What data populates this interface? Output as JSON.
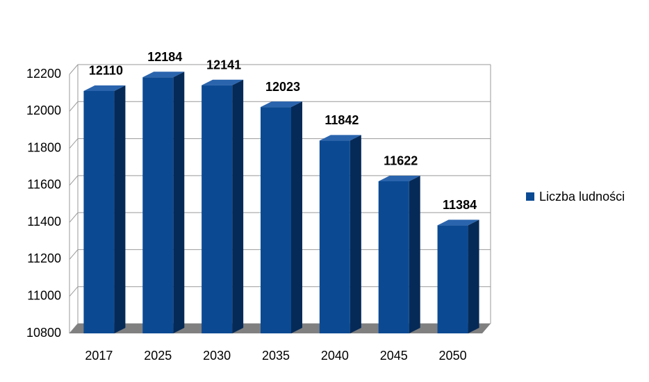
{
  "chart_data": {
    "type": "bar3d",
    "categories": [
      "2017",
      "2025",
      "2030",
      "2035",
      "2040",
      "2045",
      "2050"
    ],
    "series": [
      {
        "name": "Liczba ludności",
        "color": "#0b4a93",
        "values": [
          12110,
          12184,
          12141,
          12023,
          11842,
          11622,
          11384
        ]
      }
    ],
    "ylim": [
      10800,
      12200
    ],
    "yticks": [
      10800,
      11000,
      11200,
      11400,
      11600,
      11800,
      12000,
      12200
    ],
    "grid": true,
    "legend": "right",
    "data_labels": true
  }
}
